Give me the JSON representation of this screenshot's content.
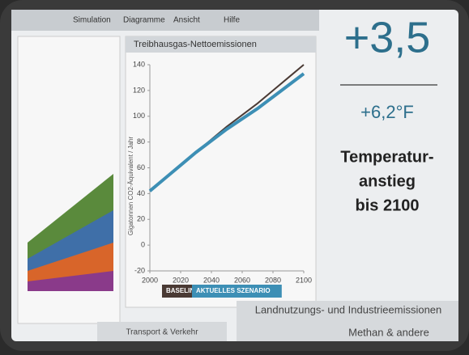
{
  "menu": [
    "Simulation",
    "Diagramme",
    "Ansicht",
    "Hilfe"
  ],
  "chart_data": {
    "type": "line",
    "title": "Treibhausgas-Nettoemissionen",
    "y_label": "Gigatonnen CO2-Äquivalent / Jahr",
    "x": [
      2000,
      2010,
      2020,
      2030,
      2040,
      2050,
      2060,
      2070,
      2080,
      2090,
      2100
    ],
    "series": [
      {
        "name": "BASELINE",
        "color": "#4a3a34",
        "values": [
          42,
          52,
          62,
          72,
          82,
          92,
          101,
          110,
          120,
          130,
          140
        ]
      },
      {
        "name": "AKTUELLES SZENARIO",
        "color": "#3d8fb5",
        "values": [
          42,
          52,
          62,
          72,
          81,
          90,
          98,
          106,
          115,
          124,
          133
        ]
      }
    ],
    "xlim": [
      2000,
      2100
    ],
    "xticks": [
      2000,
      2020,
      2040,
      2060,
      2080,
      2100
    ],
    "ylim": [
      -20,
      140
    ],
    "yticks": [
      -20,
      0,
      20,
      40,
      60,
      80,
      100,
      120,
      140
    ]
  },
  "temperature": {
    "celsius": "+3,5",
    "fahrenheit": "+6,2°F",
    "caption": [
      "Temperatur-",
      "anstieg",
      "bis 2100"
    ]
  },
  "panels": [
    "Transport & Verkehr",
    "Landnutzungs- und Industrieemissionen",
    "Methan & andere"
  ]
}
